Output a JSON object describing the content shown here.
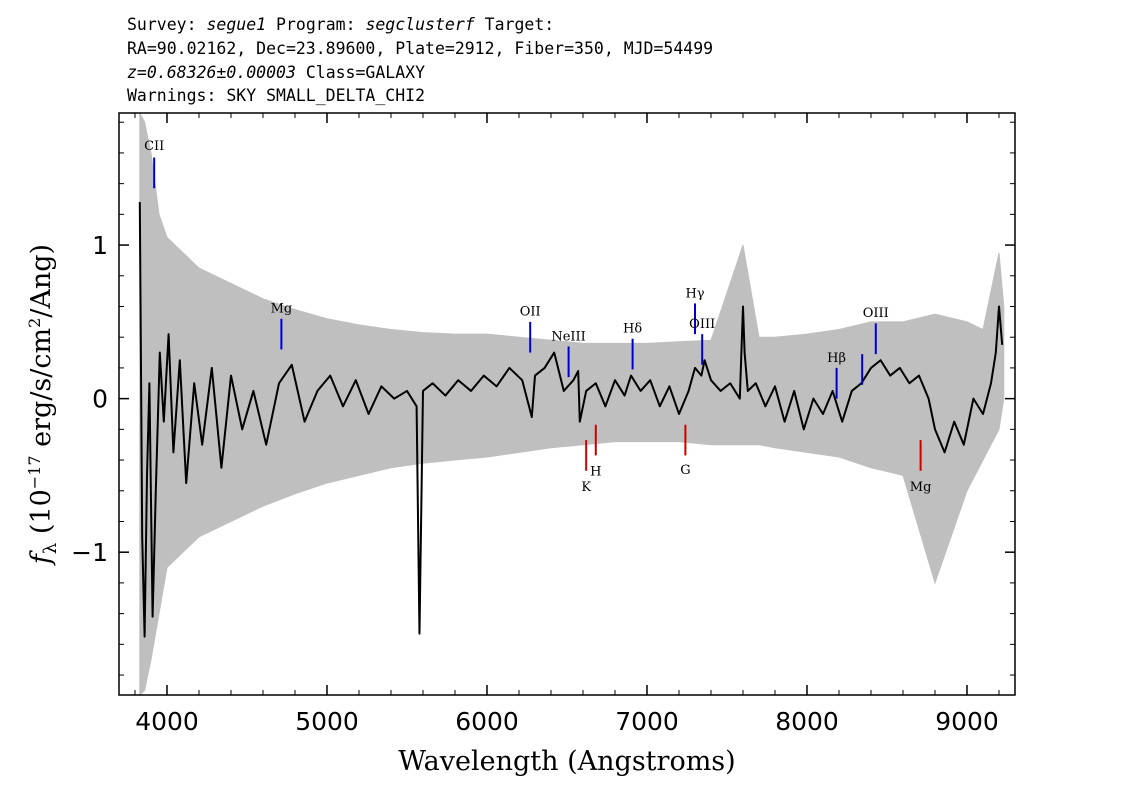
{
  "header": {
    "line1": [
      {
        "text": "Survey: ",
        "italic": false
      },
      {
        "text": "segue1",
        "italic": true
      },
      {
        "text": " Program: ",
        "italic": false
      },
      {
        "text": "segclusterf",
        "italic": true
      },
      {
        "text": " Target:",
        "italic": false
      }
    ],
    "line2": "RA=90.02162, Dec=23.89600, Plate=2912, Fiber=350, MJD=54499",
    "line3": [
      {
        "text": "z=0.68326±0.00003",
        "italic": true
      },
      {
        "text": " Class=GALAXY",
        "italic": false
      }
    ],
    "line4": "Warnings: SKY SMALL_DELTA_CHI2"
  },
  "chart_data": {
    "type": "line",
    "xlabel": "Wavelength (Angstroms)",
    "ylabel": "f_λ (10^-17 erg/s/cm^2/Ang)",
    "xlim": [
      3700,
      9300
    ],
    "ylim": [
      -1.93,
      1.86
    ],
    "x_ticks": [
      4000,
      5000,
      6000,
      7000,
      8000,
      9000
    ],
    "x_tick_labels": [
      "4000",
      "5000",
      "6000",
      "7000",
      "8000",
      "9000"
    ],
    "y_ticks": [
      -1,
      0,
      1
    ],
    "y_tick_labels": [
      "−1",
      "0",
      "1"
    ],
    "grid": false,
    "legend": "none",
    "colors": {
      "flux": "#000000",
      "error_band": "#bfbfbf",
      "emission_marker": "#0000cc",
      "absorption_marker": "#cc0000",
      "axis": "#000000"
    },
    "series": [
      {
        "role": "flux",
        "x": [
          3830,
          3845,
          3860,
          3875,
          3890,
          3910,
          3930,
          3955,
          3980,
          4010,
          4040,
          4080,
          4120,
          4170,
          4220,
          4280,
          4340,
          4400,
          4470,
          4540,
          4620,
          4700,
          4780,
          4860,
          4940,
          5020,
          5100,
          5180,
          5260,
          5340,
          5420,
          5500,
          5560,
          5578,
          5600,
          5660,
          5740,
          5820,
          5900,
          5980,
          6060,
          6140,
          6220,
          6280,
          6300,
          6360,
          6420,
          6480,
          6540,
          6570,
          6580,
          6620,
          6680,
          6740,
          6800,
          6860,
          6900,
          6960,
          7020,
          7080,
          7140,
          7200,
          7260,
          7300,
          7340,
          7360,
          7400,
          7460,
          7520,
          7580,
          7600,
          7610,
          7630,
          7680,
          7740,
          7800,
          7860,
          7920,
          7980,
          8040,
          8100,
          8160,
          8220,
          8280,
          8340,
          8400,
          8460,
          8520,
          8580,
          8640,
          8700,
          8760,
          8800,
          8860,
          8920,
          8980,
          9040,
          9100,
          9150,
          9180,
          9200,
          9220
        ],
        "y": [
          1.28,
          -0.9,
          -1.55,
          -0.5,
          0.1,
          -1.42,
          -0.6,
          0.3,
          -0.15,
          0.42,
          -0.35,
          0.25,
          -0.55,
          0.1,
          -0.3,
          0.2,
          -0.45,
          0.15,
          -0.2,
          0.05,
          -0.3,
          0.1,
          0.22,
          -0.15,
          0.05,
          0.15,
          -0.05,
          0.12,
          -0.1,
          0.08,
          0.0,
          0.05,
          -0.05,
          -1.53,
          0.05,
          0.1,
          0.02,
          0.12,
          0.05,
          0.15,
          0.08,
          0.2,
          0.12,
          -0.12,
          0.15,
          0.2,
          0.3,
          0.05,
          0.12,
          0.18,
          -0.15,
          0.05,
          0.1,
          -0.05,
          0.12,
          0.02,
          0.15,
          0.05,
          0.12,
          -0.05,
          0.08,
          -0.1,
          0.05,
          0.2,
          0.15,
          0.25,
          0.12,
          0.05,
          0.1,
          0.0,
          0.6,
          0.3,
          0.05,
          0.1,
          -0.05,
          0.08,
          -0.15,
          0.05,
          -0.2,
          0.0,
          -0.1,
          0.05,
          -0.15,
          0.05,
          0.1,
          0.2,
          0.25,
          0.15,
          0.2,
          0.1,
          0.15,
          0.0,
          -0.2,
          -0.35,
          -0.15,
          -0.3,
          0.0,
          -0.1,
          0.1,
          0.3,
          0.6,
          0.35
        ]
      },
      {
        "role": "error_band_upper",
        "x": [
          3830,
          3860,
          3900,
          3950,
          4000,
          4100,
          4200,
          4400,
          4600,
          4800,
          5000,
          5200,
          5400,
          5600,
          5800,
          6000,
          6200,
          6400,
          6600,
          6800,
          7000,
          7200,
          7400,
          7600,
          7700,
          7800,
          8000,
          8200,
          8400,
          8600,
          8800,
          9000,
          9100,
          9200,
          9230
        ],
        "y": [
          1.86,
          1.8,
          1.6,
          1.2,
          1.05,
          0.95,
          0.85,
          0.75,
          0.65,
          0.58,
          0.52,
          0.48,
          0.45,
          0.43,
          0.42,
          0.42,
          0.4,
          0.38,
          0.36,
          0.36,
          0.36,
          0.37,
          0.38,
          1.0,
          0.4,
          0.4,
          0.42,
          0.45,
          0.5,
          0.5,
          0.55,
          0.5,
          0.45,
          0.95,
          0.6
        ]
      },
      {
        "role": "error_band_lower",
        "x": [
          3830,
          3860,
          3900,
          3950,
          4000,
          4100,
          4200,
          4400,
          4600,
          4800,
          5000,
          5200,
          5400,
          5600,
          5800,
          6000,
          6200,
          6400,
          6600,
          6800,
          7000,
          7200,
          7400,
          7600,
          7700,
          7800,
          8000,
          8200,
          8400,
          8600,
          8800,
          9000,
          9100,
          9200,
          9230
        ],
        "y": [
          -1.93,
          -1.9,
          -1.7,
          -1.4,
          -1.1,
          -1.0,
          -0.9,
          -0.8,
          -0.7,
          -0.62,
          -0.55,
          -0.5,
          -0.45,
          -0.42,
          -0.4,
          -0.38,
          -0.35,
          -0.32,
          -0.3,
          -0.28,
          -0.28,
          -0.28,
          -0.3,
          -0.3,
          -0.3,
          -0.32,
          -0.35,
          -0.38,
          -0.45,
          -0.5,
          -1.2,
          -0.6,
          -0.4,
          -0.2,
          0.0
        ]
      }
    ],
    "line_markers": [
      {
        "label": "CII",
        "x": 3920,
        "y0": 1.37,
        "y1": 1.57,
        "kind": "emission",
        "label_y": 1.62
      },
      {
        "label": "Mg",
        "x": 4715,
        "y0": 0.32,
        "y1": 0.52,
        "kind": "emission",
        "label_y": 0.56
      },
      {
        "label": "OII",
        "x": 6270,
        "y0": 0.3,
        "y1": 0.5,
        "kind": "emission",
        "label_y": 0.54
      },
      {
        "label": "NeIII",
        "x": 6510,
        "y0": 0.14,
        "y1": 0.34,
        "kind": "emission",
        "label_y": 0.38
      },
      {
        "label": "Hδ",
        "x": 6910,
        "y0": 0.19,
        "y1": 0.39,
        "kind": "emission",
        "label_y": 0.43
      },
      {
        "label": "Hγ",
        "x": 7300,
        "y0": 0.42,
        "y1": 0.62,
        "kind": "emission",
        "label_y": 0.66
      },
      {
        "label": "OIII",
        "x": 7345,
        "y0": 0.22,
        "y1": 0.42,
        "kind": "emission",
        "label_y": 0.46
      },
      {
        "label": "Hβ",
        "x": 8185,
        "y0": 0.0,
        "y1": 0.2,
        "kind": "emission",
        "label_y": 0.24
      },
      {
        "label": "",
        "x": 8345,
        "y0": 0.09,
        "y1": 0.29,
        "kind": "emission",
        "label_y": 0.33
      },
      {
        "label": "OIII",
        "x": 8430,
        "y0": 0.29,
        "y1": 0.49,
        "kind": "emission",
        "label_y": 0.53
      },
      {
        "label": "K",
        "x": 6620,
        "y0": -0.47,
        "y1": -0.27,
        "kind": "absorption",
        "label_y": -0.6
      },
      {
        "label": "H",
        "x": 6680,
        "y0": -0.37,
        "y1": -0.17,
        "kind": "absorption",
        "label_y": -0.5
      },
      {
        "label": "G",
        "x": 7240,
        "y0": -0.37,
        "y1": -0.17,
        "kind": "absorption",
        "label_y": -0.49
      },
      {
        "label": "Mg",
        "x": 8710,
        "y0": -0.47,
        "y1": -0.27,
        "kind": "absorption",
        "label_y": -0.6
      }
    ]
  }
}
